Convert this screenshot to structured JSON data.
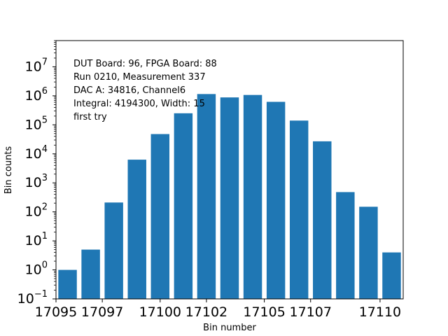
{
  "chart_data": {
    "type": "bar",
    "xlabel": "Bin number",
    "ylabel": "Bin counts",
    "yscale": "log",
    "ylim": [
      0.1,
      80000000
    ],
    "xlim": [
      17095.5,
      17110.5
    ],
    "bar_color": "#1f77b4",
    "x_ticks": [
      {
        "value": 17095.5,
        "label": "17095"
      },
      {
        "value": 17097.5,
        "label": "17097"
      },
      {
        "value": 17100.0,
        "label": "17100"
      },
      {
        "value": 17102.0,
        "label": "17102"
      },
      {
        "value": 17104.5,
        "label": "17105"
      },
      {
        "value": 17106.5,
        "label": "17107"
      },
      {
        "value": 17109.5,
        "label": "17110"
      }
    ],
    "y_ticks": [
      {
        "exp": -1,
        "base": "10",
        "sup": "−1"
      },
      {
        "exp": 0,
        "base": "10",
        "sup": "0"
      },
      {
        "exp": 1,
        "base": "10",
        "sup": "1"
      },
      {
        "exp": 2,
        "base": "10",
        "sup": "2"
      },
      {
        "exp": 3,
        "base": "10",
        "sup": "3"
      },
      {
        "exp": 4,
        "base": "10",
        "sup": "4"
      },
      {
        "exp": 5,
        "base": "10",
        "sup": "5"
      },
      {
        "exp": 6,
        "base": "10",
        "sup": "6"
      },
      {
        "exp": 7,
        "base": "10",
        "sup": "7"
      }
    ],
    "x": [
      17096,
      17097,
      17098,
      17099,
      17100,
      17101,
      17102,
      17103,
      17104,
      17105,
      17106,
      17107,
      17108,
      17109,
      17110
    ],
    "values": [
      1,
      5,
      210,
      6300,
      48000,
      250000,
      1150000,
      880000,
      1070000,
      620000,
      140000,
      27000,
      480,
      150,
      4
    ],
    "annotation": [
      "DUT Board: 96, FPGA Board: 88",
      "Run 0210, Measurement 337",
      "DAC A: 34816, Channel6",
      "Integral: 4194300, Width: 15",
      "first try"
    ]
  }
}
